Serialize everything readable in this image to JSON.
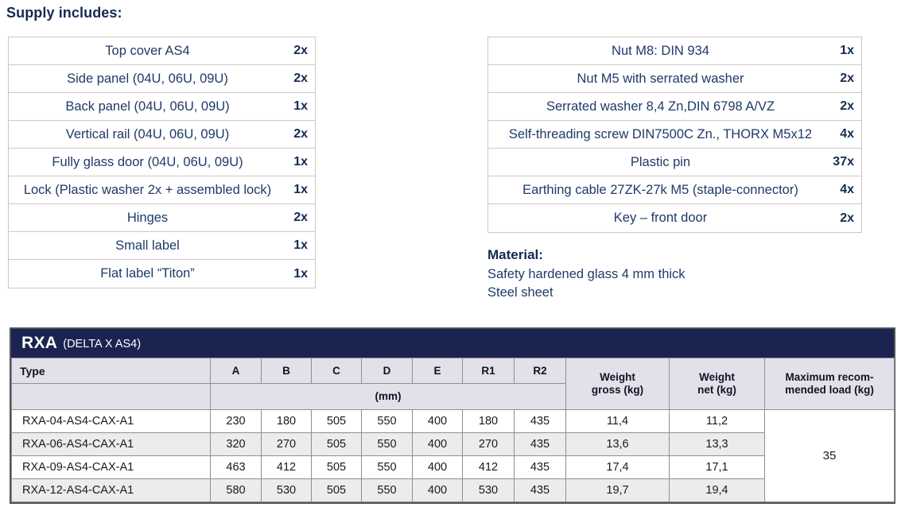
{
  "heading": "Supply includes:",
  "supply_left": {
    "items": [
      {
        "label": "Top cover AS4",
        "qty": "2x"
      },
      {
        "label": "Side panel (04U, 06U, 09U)",
        "qty": "2x"
      },
      {
        "label": "Back panel (04U, 06U, 09U)",
        "qty": "1x"
      },
      {
        "label": "Vertical rail (04U, 06U, 09U)",
        "qty": "2x"
      },
      {
        "label": "Fully glass door (04U, 06U, 09U)",
        "qty": "1x"
      },
      {
        "label": "Lock (Plastic washer 2x + assembled lock)",
        "qty": "1x"
      },
      {
        "label": "Hinges",
        "qty": "2x"
      },
      {
        "label": "Small label",
        "qty": "1x"
      },
      {
        "label": "Flat label “Titon”",
        "qty": "1x"
      }
    ]
  },
  "supply_right": {
    "items": [
      {
        "label": "Nut M8: DIN 934",
        "qty": "1x"
      },
      {
        "label": "Nut M5 with serrated washer",
        "qty": "2x"
      },
      {
        "label": "Serrated washer 8,4 Zn,DIN 6798 A/VZ",
        "qty": "2x"
      },
      {
        "label": "Self-threading screw DIN7500C Zn., THORX M5x12",
        "qty": "4x"
      },
      {
        "label": "Plastic pin",
        "qty": "37x"
      },
      {
        "label": "Earthing cable 27ZK-27k M5 (staple-connector)",
        "qty": "4x"
      },
      {
        "label": "Key – front door",
        "qty": "2x"
      }
    ]
  },
  "material": {
    "heading": "Material:",
    "lines": [
      "Safety hardened glass 4 mm thick",
      "Steel sheet"
    ]
  },
  "rxa": {
    "title": "RXA",
    "subtitle": "(DELTA X AS4)",
    "type_header": "Type",
    "dim_columns": [
      "A",
      "B",
      "C",
      "D",
      "E",
      "R1",
      "R2"
    ],
    "unit_row_label": "(mm)",
    "weight_gross_header": [
      "Weight",
      "gross (kg)"
    ],
    "weight_net_header": [
      "Weight",
      "net (kg)"
    ],
    "max_load_header": [
      "Maximum recom-",
      "mended load (kg)"
    ],
    "rows": [
      {
        "type": "RXA-04-AS4-CAX-A1",
        "dims": [
          "230",
          "180",
          "505",
          "550",
          "400",
          "180",
          "435"
        ],
        "weight_gross": "11,4",
        "weight_net": "11,2"
      },
      {
        "type": "RXA-06-AS4-CAX-A1",
        "dims": [
          "320",
          "270",
          "505",
          "550",
          "400",
          "270",
          "435"
        ],
        "weight_gross": "13,6",
        "weight_net": "13,3"
      },
      {
        "type": "RXA-09-AS4-CAX-A1",
        "dims": [
          "463",
          "412",
          "505",
          "550",
          "400",
          "412",
          "435"
        ],
        "weight_gross": "17,4",
        "weight_net": "17,1"
      },
      {
        "type": "RXA-12-AS4-CAX-A1",
        "dims": [
          "580",
          "530",
          "505",
          "550",
          "400",
          "530",
          "435"
        ],
        "weight_gross": "19,7",
        "weight_net": "19,4"
      }
    ],
    "max_load": "35"
  },
  "colors": {
    "navy_bar": "#1b2350",
    "text_navy": "#1f3a68",
    "heading_navy": "#142a52",
    "header_row_bg": "#e2e1ea",
    "stripe_bg": "#ececec",
    "table_border": "#8f8f94",
    "supply_border": "#c9c9c9"
  }
}
